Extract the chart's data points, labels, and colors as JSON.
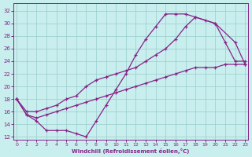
{
  "xlabel": "Windchill (Refroidissement éolien,°C)",
  "bg_color": "#c8eeee",
  "line_color": "#882288",
  "grid_color": "#99cccc",
  "xlim": [
    -0.3,
    23.3
  ],
  "ylim": [
    11.5,
    33.2
  ],
  "xticks": [
    0,
    1,
    2,
    3,
    4,
    5,
    6,
    7,
    8,
    9,
    10,
    11,
    12,
    13,
    14,
    15,
    16,
    17,
    18,
    19,
    20,
    21,
    22,
    23
  ],
  "yticks": [
    12,
    14,
    16,
    18,
    20,
    22,
    24,
    26,
    28,
    30,
    32
  ],
  "curve1_x": [
    0,
    1,
    2,
    3,
    4,
    5,
    6,
    7,
    8,
    9,
    10,
    11,
    12,
    13,
    14,
    15,
    16,
    17,
    18,
    20,
    22,
    23
  ],
  "curve1_y": [
    18,
    15.5,
    14.5,
    13,
    13,
    13,
    12.5,
    12,
    14.5,
    17,
    19.5,
    22,
    25,
    27.5,
    29.5,
    31.5,
    31.5,
    31.5,
    31,
    30,
    27,
    23.5
  ],
  "curve2_x": [
    0,
    1,
    2,
    3,
    4,
    5,
    6,
    7,
    8,
    9,
    10,
    11,
    12,
    13,
    14,
    15,
    16,
    17,
    18,
    19,
    20,
    21,
    22,
    23
  ],
  "curve2_y": [
    18,
    16,
    16,
    16.5,
    17,
    18,
    18.5,
    20,
    21,
    21.5,
    22,
    22.5,
    23,
    24,
    25,
    26,
    27.5,
    29.5,
    31,
    30.5,
    30,
    27,
    24,
    24
  ],
  "curve3_x": [
    0,
    1,
    2,
    3,
    4,
    5,
    6,
    7,
    8,
    9,
    10,
    11,
    12,
    13,
    14,
    15,
    16,
    17,
    18,
    19,
    20,
    21,
    22,
    23
  ],
  "curve3_y": [
    18,
    15.5,
    15,
    15.5,
    16,
    16.5,
    17,
    17.5,
    18,
    18.5,
    19,
    19.5,
    20,
    20.5,
    21,
    21.5,
    22,
    22.5,
    23,
    23,
    23,
    23.5,
    23.5,
    23.5
  ]
}
